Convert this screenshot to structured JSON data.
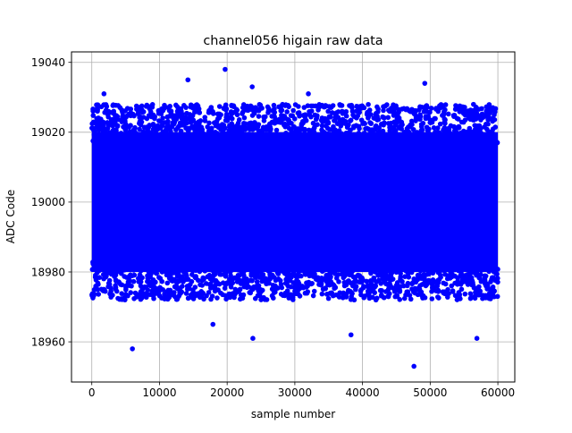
{
  "chart_data": {
    "type": "scatter",
    "title": "channel056 higain raw data",
    "xlabel": "sample number",
    "ylabel": "ADC Code",
    "xlim": [
      -3000,
      62500
    ],
    "ylim": [
      18948.5,
      19043.0
    ],
    "xticks": [
      0,
      10000,
      20000,
      30000,
      40000,
      50000,
      60000
    ],
    "xtick_labels": [
      "0",
      "10000",
      "20000",
      "30000",
      "40000",
      "50000",
      "60000"
    ],
    "yticks": [
      18960,
      18980,
      19000,
      19020,
      19040
    ],
    "ytick_labels": [
      "18960",
      "18980",
      "19000",
      "19020",
      "19040"
    ],
    "grid": true,
    "marker_color": "#0000ff",
    "series": [
      {
        "n_samples": 60000,
        "x_range": [
          0,
          60000
        ],
        "mean": 19000,
        "core_band": [
          18980,
          19020
        ],
        "outliers": [
          {
            "x": 19700,
            "y": 19038
          },
          {
            "x": 14200,
            "y": 19035
          },
          {
            "x": 49200,
            "y": 19034
          },
          {
            "x": 23700,
            "y": 19033
          },
          {
            "x": 1800,
            "y": 19031
          },
          {
            "x": 32000,
            "y": 19031
          },
          {
            "x": 6000,
            "y": 18958
          },
          {
            "x": 47600,
            "y": 18953
          },
          {
            "x": 38300,
            "y": 18962
          },
          {
            "x": 23800,
            "y": 18961
          },
          {
            "x": 56900,
            "y": 18961
          },
          {
            "x": 17900,
            "y": 18965
          }
        ]
      }
    ]
  }
}
